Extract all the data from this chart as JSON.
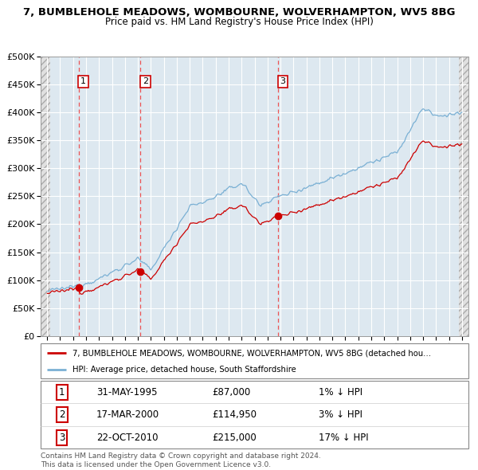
{
  "title": "7, BUMBLEHOLE MEADOWS, WOMBOURNE, WOLVERHAMPTON, WV5 8BG",
  "subtitle": "Price paid vs. HM Land Registry's House Price Index (HPI)",
  "sales": [
    {
      "date_num": 1995.42,
      "price": 87000,
      "label": "1",
      "date_str": "31-MAY-1995",
      "pct": "1%"
    },
    {
      "date_num": 2000.21,
      "price": 114950,
      "label": "2",
      "date_str": "17-MAR-2000",
      "pct": "3%"
    },
    {
      "date_num": 2010.81,
      "price": 215000,
      "label": "3",
      "date_str": "22-OCT-2010",
      "pct": "17%"
    }
  ],
  "legend_line1": "7, BUMBLEHOLE MEADOWS, WOMBOURNE, WOLVERHAMPTON, WV5 8BG (detached hou…",
  "legend_line2": "HPI: Average price, detached house, South Staffordshire",
  "table": [
    [
      "1",
      "31-MAY-1995",
      "£87,000",
      "1% ↓ HPI"
    ],
    [
      "2",
      "17-MAR-2000",
      "£114,950",
      "3% ↓ HPI"
    ],
    [
      "3",
      "22-OCT-2010",
      "£215,000",
      "17% ↓ HPI"
    ]
  ],
  "footer": "Contains HM Land Registry data © Crown copyright and database right 2024.\nThis data is licensed under the Open Government Licence v3.0.",
  "red_line_color": "#cc0000",
  "blue_line_color": "#7ab0d4",
  "sale_dot_color": "#cc0000",
  "dashed_line_color": "#ee4444",
  "ylim": [
    0,
    500000
  ],
  "xlim_start": 1992.5,
  "xlim_end": 2025.5,
  "chart_bg": "#dde8f0",
  "hatch_bg": "#e8e8e8"
}
